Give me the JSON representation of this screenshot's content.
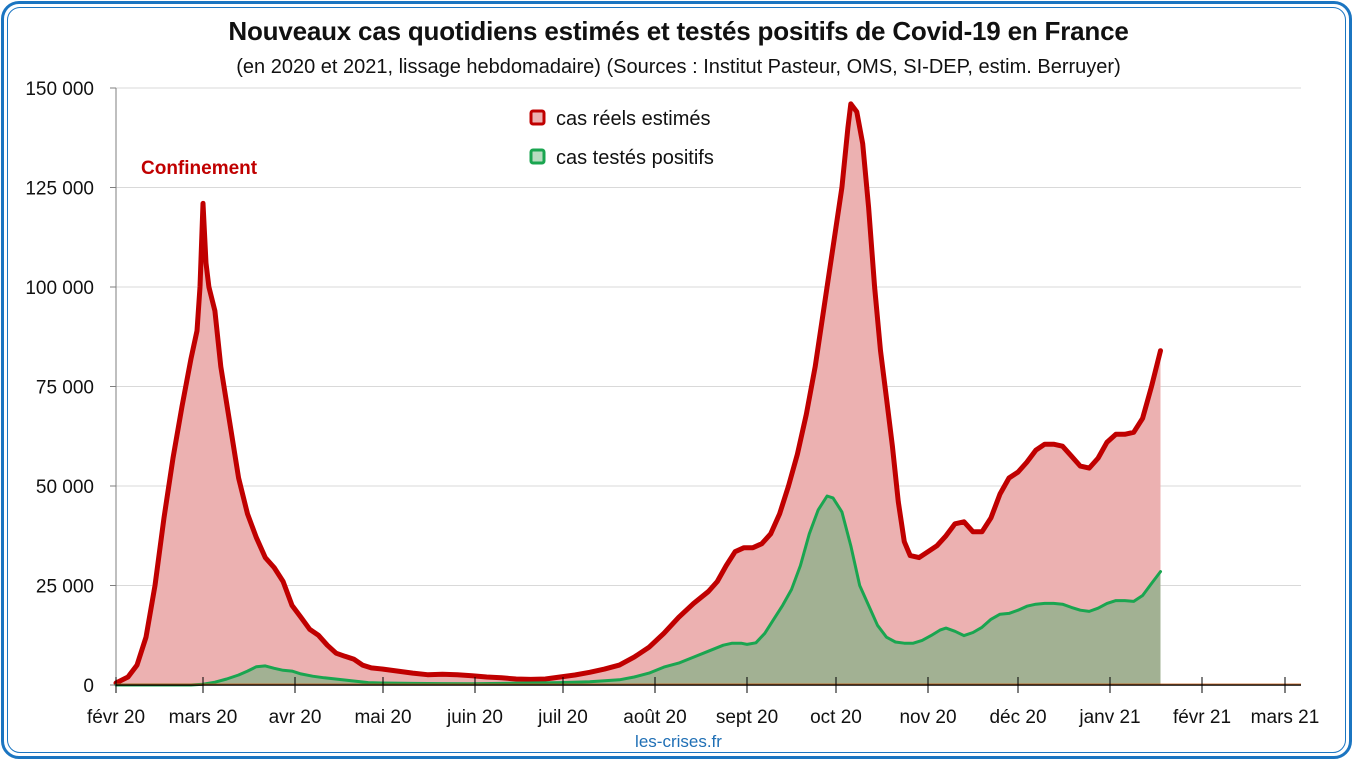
{
  "chart_data": {
    "type": "area",
    "title": "Nouveaux cas quotidiens estimés et testés positifs de Covid-19 en France",
    "subtitle": "(en 2020 et 2021, lissage hebdomadaire) (Sources : Institut Pasteur, OMS, SI-DEP, estim. Berruyer)",
    "xlabel": "",
    "ylabel": "",
    "x_unit": "days since 1 Feb 2020",
    "xlim": [
      0,
      400
    ],
    "ylim": [
      0,
      150000
    ],
    "grid": true,
    "y_ticks": [
      {
        "value": 0,
        "label": "0"
      },
      {
        "value": 25000,
        "label": "25 000"
      },
      {
        "value": 50000,
        "label": "50 000"
      },
      {
        "value": 75000,
        "label": "75 000"
      },
      {
        "value": 100000,
        "label": "100 000"
      },
      {
        "value": 125000,
        "label": "125 000"
      },
      {
        "value": 150000,
        "label": "150 000"
      }
    ],
    "x_ticks": [
      {
        "day": 0,
        "label": "févr 20"
      },
      {
        "day": 29,
        "label": "mars 20"
      },
      {
        "day": 60,
        "label": "avr 20"
      },
      {
        "day": 90,
        "label": "mai 20"
      },
      {
        "day": 121,
        "label": "juin 20"
      },
      {
        "day": 151,
        "label": "juil 20"
      },
      {
        "day": 182,
        "label": "août 20"
      },
      {
        "day": 213,
        "label": "sept 20"
      },
      {
        "day": 243,
        "label": "oct 20"
      },
      {
        "day": 274,
        "label": "nov 20"
      },
      {
        "day": 304,
        "label": "déc 20"
      },
      {
        "day": 335,
        "label": "janv 21"
      },
      {
        "day": 366,
        "label": "févr 21"
      },
      {
        "day": 394,
        "label": "mars 21"
      }
    ],
    "legend_position": "top-center",
    "series": [
      {
        "name": "cas réels estimés",
        "line_color": "#c00000",
        "fill_color": "#ecb1b1",
        "points": [
          [
            0,
            500
          ],
          [
            4,
            2000
          ],
          [
            7,
            5000
          ],
          [
            10,
            12000
          ],
          [
            13,
            25000
          ],
          [
            16,
            42000
          ],
          [
            19,
            57000
          ],
          [
            22,
            70000
          ],
          [
            25,
            82000
          ],
          [
            27,
            89000
          ],
          [
            28,
            100000
          ],
          [
            29,
            121000
          ],
          [
            30,
            106000
          ],
          [
            31,
            100000
          ],
          [
            33,
            94000
          ],
          [
            35,
            80000
          ],
          [
            38,
            66000
          ],
          [
            41,
            52000
          ],
          [
            44,
            43000
          ],
          [
            47,
            37000
          ],
          [
            50,
            32000
          ],
          [
            53,
            29500
          ],
          [
            56,
            26000
          ],
          [
            59,
            20000
          ],
          [
            62,
            17000
          ],
          [
            65,
            14000
          ],
          [
            68,
            12500
          ],
          [
            71,
            10000
          ],
          [
            74,
            8000
          ],
          [
            77,
            7200
          ],
          [
            80,
            6500
          ],
          [
            83,
            5000
          ],
          [
            86,
            4300
          ],
          [
            90,
            4000
          ],
          [
            95,
            3500
          ],
          [
            100,
            3000
          ],
          [
            105,
            2600
          ],
          [
            110,
            2700
          ],
          [
            115,
            2600
          ],
          [
            120,
            2300
          ],
          [
            125,
            2000
          ],
          [
            130,
            1800
          ],
          [
            135,
            1500
          ],
          [
            140,
            1400
          ],
          [
            145,
            1500
          ],
          [
            150,
            2000
          ],
          [
            155,
            2500
          ],
          [
            160,
            3200
          ],
          [
            165,
            4000
          ],
          [
            170,
            5000
          ],
          [
            175,
            7000
          ],
          [
            180,
            9500
          ],
          [
            185,
            13000
          ],
          [
            190,
            17000
          ],
          [
            195,
            20500
          ],
          [
            200,
            23500
          ],
          [
            203,
            26000
          ],
          [
            206,
            30000
          ],
          [
            209,
            33500
          ],
          [
            212,
            34500
          ],
          [
            215,
            34500
          ],
          [
            218,
            35500
          ],
          [
            221,
            38000
          ],
          [
            224,
            43000
          ],
          [
            227,
            50000
          ],
          [
            230,
            58000
          ],
          [
            233,
            68000
          ],
          [
            236,
            80000
          ],
          [
            239,
            95000
          ],
          [
            242,
            110000
          ],
          [
            245,
            125000
          ],
          [
            247,
            140000
          ],
          [
            248,
            146000
          ],
          [
            250,
            144000
          ],
          [
            252,
            136000
          ],
          [
            254,
            120000
          ],
          [
            256,
            100000
          ],
          [
            258,
            84000
          ],
          [
            260,
            72000
          ],
          [
            262,
            60000
          ],
          [
            264,
            46000
          ],
          [
            266,
            36000
          ],
          [
            268,
            32500
          ],
          [
            271,
            32000
          ],
          [
            274,
            33500
          ],
          [
            277,
            35000
          ],
          [
            280,
            37500
          ],
          [
            283,
            40500
          ],
          [
            286,
            41000
          ],
          [
            289,
            38500
          ],
          [
            292,
            38500
          ],
          [
            295,
            42000
          ],
          [
            298,
            48000
          ],
          [
            301,
            52000
          ],
          [
            304,
            53500
          ],
          [
            307,
            56000
          ],
          [
            310,
            59000
          ],
          [
            313,
            60500
          ],
          [
            316,
            60500
          ],
          [
            319,
            60000
          ],
          [
            322,
            57500
          ],
          [
            325,
            55000
          ],
          [
            328,
            54500
          ],
          [
            331,
            57000
          ],
          [
            334,
            61000
          ],
          [
            337,
            63000
          ],
          [
            340,
            63000
          ],
          [
            343,
            63500
          ],
          [
            346,
            67000
          ],
          [
            349,
            75000
          ],
          [
            352,
            84000
          ]
        ]
      },
      {
        "name": "cas testés positifs",
        "line_color": "#1aa550",
        "fill_color": "#a2b193",
        "points": [
          [
            0,
            0
          ],
          [
            15,
            0
          ],
          [
            25,
            0
          ],
          [
            29,
            200
          ],
          [
            33,
            700
          ],
          [
            37,
            1500
          ],
          [
            41,
            2500
          ],
          [
            44,
            3500
          ],
          [
            47,
            4600
          ],
          [
            50,
            4800
          ],
          [
            53,
            4200
          ],
          [
            56,
            3700
          ],
          [
            59,
            3500
          ],
          [
            62,
            2800
          ],
          [
            66,
            2200
          ],
          [
            70,
            1800
          ],
          [
            75,
            1400
          ],
          [
            80,
            1000
          ],
          [
            85,
            600
          ],
          [
            90,
            500
          ],
          [
            100,
            400
          ],
          [
            110,
            350
          ],
          [
            120,
            300
          ],
          [
            130,
            400
          ],
          [
            140,
            500
          ],
          [
            150,
            600
          ],
          [
            160,
            800
          ],
          [
            170,
            1300
          ],
          [
            175,
            2000
          ],
          [
            180,
            3000
          ],
          [
            185,
            4500
          ],
          [
            190,
            5500
          ],
          [
            195,
            7000
          ],
          [
            200,
            8500
          ],
          [
            205,
            10000
          ],
          [
            208,
            10500
          ],
          [
            211,
            10500
          ],
          [
            213,
            10200
          ],
          [
            216,
            10600
          ],
          [
            219,
            13000
          ],
          [
            222,
            16500
          ],
          [
            225,
            20000
          ],
          [
            228,
            24000
          ],
          [
            231,
            30000
          ],
          [
            234,
            38000
          ],
          [
            237,
            44000
          ],
          [
            240,
            47500
          ],
          [
            242,
            47000
          ],
          [
            245,
            43500
          ],
          [
            248,
            35000
          ],
          [
            251,
            25000
          ],
          [
            254,
            20000
          ],
          [
            257,
            15000
          ],
          [
            260,
            12000
          ],
          [
            263,
            10800
          ],
          [
            266,
            10500
          ],
          [
            269,
            10500
          ],
          [
            272,
            11200
          ],
          [
            275,
            12400
          ],
          [
            278,
            13800
          ],
          [
            280,
            14300
          ],
          [
            283,
            13500
          ],
          [
            286,
            12400
          ],
          [
            289,
            13200
          ],
          [
            292,
            14500
          ],
          [
            295,
            16500
          ],
          [
            298,
            17800
          ],
          [
            301,
            18000
          ],
          [
            304,
            18800
          ],
          [
            307,
            19800
          ],
          [
            310,
            20300
          ],
          [
            313,
            20500
          ],
          [
            316,
            20500
          ],
          [
            319,
            20300
          ],
          [
            322,
            19500
          ],
          [
            325,
            18800
          ],
          [
            328,
            18500
          ],
          [
            331,
            19300
          ],
          [
            334,
            20500
          ],
          [
            337,
            21200
          ],
          [
            340,
            21200
          ],
          [
            343,
            21000
          ],
          [
            346,
            22500
          ],
          [
            349,
            25500
          ],
          [
            352,
            28500
          ]
        ]
      }
    ],
    "annotations": [
      {
        "text": "Confinement",
        "color": "#c00000",
        "near_day": 29
      }
    ]
  },
  "legend": {
    "items": [
      {
        "label": "cas réels estimés"
      },
      {
        "label": "cas testés positifs"
      }
    ]
  },
  "footer": {
    "source": "les-crises.fr"
  },
  "colors": {
    "frame": "#1b75c1",
    "grid": "#d9d9d9",
    "axis": "#7f7f7f",
    "source_text": "#1f6fb5"
  }
}
